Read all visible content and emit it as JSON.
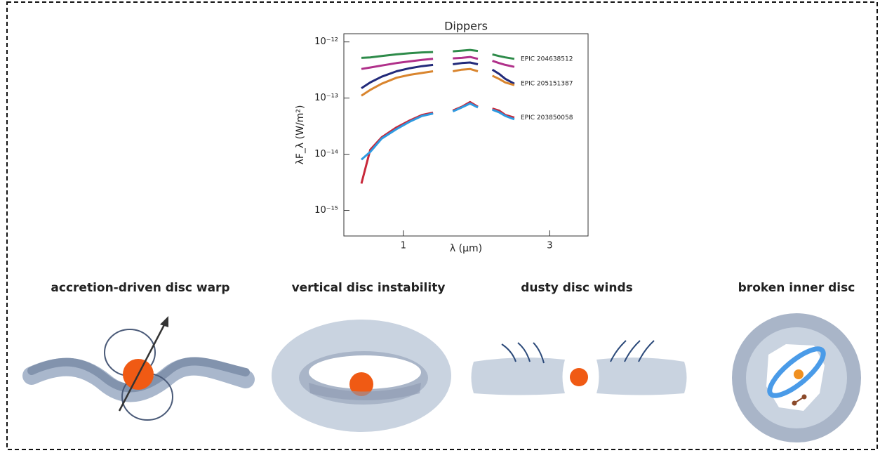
{
  "chart_data": {
    "type": "line",
    "title": "Dippers",
    "xlabel": "λ (μm)",
    "ylabel": "λF_λ (W/m²)",
    "xlog": true,
    "ylog": true,
    "xlim": [
      0.64,
      4
    ],
    "xticks": [
      1,
      3
    ],
    "ylim": [
      3.5e-16,
      1.4e-12
    ],
    "yticks": [
      {
        "value": 1e-15,
        "label": "10⁻¹⁵"
      },
      {
        "value": 1e-14,
        "label": "10⁻¹⁴"
      },
      {
        "value": 1e-13,
        "label": "10⁻¹³"
      },
      {
        "value": 1e-12,
        "label": "10⁻¹²"
      }
    ],
    "x": [
      0.73,
      0.78,
      0.85,
      0.95,
      1.05,
      1.15,
      1.25,
      1.3,
      1.45,
      1.55,
      1.65,
      1.75,
      1.8,
      1.95,
      2.05,
      2.15,
      2.3
    ],
    "series": [
      {
        "name": "EPIC 204638512",
        "color": "#2e8b4a",
        "values": [
          5.2e-13,
          5.3e-13,
          5.6e-13,
          6e-13,
          6.3e-13,
          6.5e-13,
          6.6e-13,
          null,
          6.8e-13,
          7e-13,
          7.2e-13,
          6.9e-13,
          null,
          6e-13,
          5.6e-13,
          5.3e-13,
          5e-13
        ]
      },
      {
        "color": "#b0308a",
        "values": [
          3.3e-13,
          3.5e-13,
          3.8e-13,
          4.2e-13,
          4.5e-13,
          4.8e-13,
          5e-13,
          null,
          5.1e-13,
          5.2e-13,
          5.4e-13,
          5e-13,
          null,
          4.6e-13,
          4.2e-13,
          3.9e-13,
          3.6e-13
        ]
      },
      {
        "name": "EPIC 205151387",
        "color": "#222a7a",
        "values": [
          1.5e-13,
          1.9e-13,
          2.4e-13,
          3e-13,
          3.4e-13,
          3.7e-13,
          3.9e-13,
          null,
          4e-13,
          4.2e-13,
          4.3e-13,
          4e-13,
          null,
          3.2e-13,
          2.7e-13,
          2.2e-13,
          1.8e-13
        ]
      },
      {
        "color": "#d9852e",
        "values": [
          1.1e-13,
          1.4e-13,
          1.8e-13,
          2.3e-13,
          2.6e-13,
          2.8e-13,
          3e-13,
          null,
          3e-13,
          3.2e-13,
          3.3e-13,
          3e-13,
          null,
          2.5e-13,
          2.2e-13,
          1.9e-13,
          1.7e-13
        ]
      },
      {
        "name": "EPIC 203850058",
        "color": "#c8283a",
        "values": [
          3e-15,
          1.2e-14,
          2e-14,
          3e-14,
          4e-14,
          5e-14,
          5.5e-14,
          null,
          6e-14,
          7e-14,
          8.5e-14,
          7e-14,
          null,
          6.5e-14,
          6e-14,
          5e-14,
          4.5e-14
        ]
      },
      {
        "color": "#2f9ae0",
        "values": [
          8e-15,
          1.1e-14,
          1.9e-14,
          2.8e-14,
          3.8e-14,
          4.8e-14,
          5.3e-14,
          null,
          5.8e-14,
          6.8e-14,
          8e-14,
          6.8e-14,
          null,
          6.2e-14,
          5.6e-14,
          4.8e-14,
          4.2e-14
        ]
      }
    ]
  },
  "panels": [
    "accretion-driven disc warp",
    "vertical disc instability",
    "dusty disc winds",
    "broken inner disc"
  ]
}
